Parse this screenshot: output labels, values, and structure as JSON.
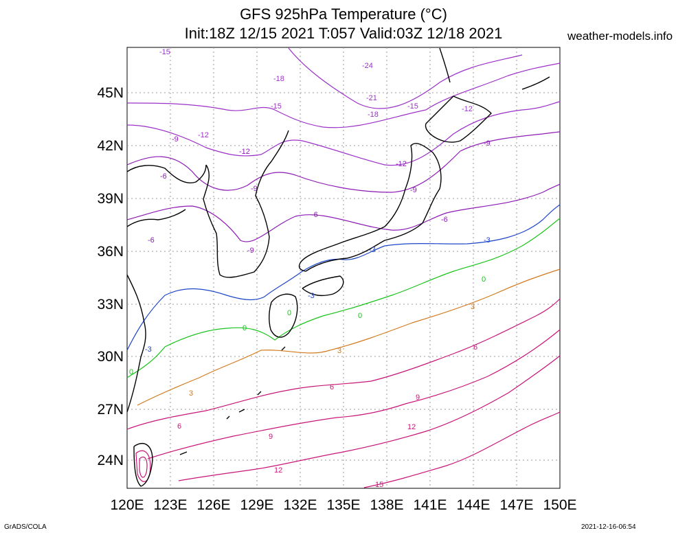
{
  "header": {
    "title_line1": "GFS 925hPa Temperature (°C)",
    "title_line2": "Init:18Z 12/15 2021 T:057 Valid:03Z 12/18 2021",
    "site": "weather-models.info"
  },
  "footer": {
    "left": "GrADS/COLA",
    "right": "2021-12-16-06:54"
  },
  "axes": {
    "lon_labels": [
      "120E",
      "123E",
      "126E",
      "129E",
      "132E",
      "135E",
      "138E",
      "141E",
      "144E",
      "147E",
      "150E"
    ],
    "lat_labels": [
      "45N",
      "42N",
      "39N",
      "36N",
      "33N",
      "30N",
      "27N",
      "24N"
    ]
  },
  "colors": {
    "cold_purple": "#9b30c8",
    "cool_purple": "#8c1ab4",
    "minus3_blue": "#1e46c8",
    "zero_green": "#19c319",
    "plus3_orange": "#d2781e",
    "warm_magenta": "#c81478",
    "coast": "#000000"
  },
  "contour_labels": [
    {
      "text": "-15",
      "color": "#9b30c8"
    },
    {
      "text": "-24",
      "color": "#9b30c8"
    },
    {
      "text": "-18",
      "color": "#9b30c8"
    },
    {
      "text": "-21",
      "color": "#9b30c8"
    },
    {
      "text": "-15",
      "color": "#9b30c8"
    },
    {
      "text": "-18",
      "color": "#9b30c8"
    },
    {
      "text": "-15",
      "color": "#9b30c8"
    },
    {
      "text": "-12",
      "color": "#9b30c8"
    },
    {
      "text": "-12",
      "color": "#9b30c8"
    },
    {
      "text": "-9",
      "color": "#8c1ab4"
    },
    {
      "text": "-12",
      "color": "#8c1ab4"
    },
    {
      "text": "-12",
      "color": "#8c1ab4"
    },
    {
      "text": "-9",
      "color": "#8c1ab4"
    },
    {
      "text": "-9",
      "color": "#8c1ab4"
    },
    {
      "text": "-6",
      "color": "#8c1ab4"
    },
    {
      "text": "-6",
      "color": "#8c1ab4"
    },
    {
      "text": "-6",
      "color": "#8c1ab4"
    },
    {
      "text": "-9",
      "color": "#8c1ab4"
    },
    {
      "text": "-6",
      "color": "#8c1ab4"
    },
    {
      "text": "-9",
      "color": "#8c1ab4"
    },
    {
      "text": "-3",
      "color": "#1e46c8"
    },
    {
      "text": "-3",
      "color": "#1e46c8"
    },
    {
      "text": "-3",
      "color": "#1e46c8"
    },
    {
      "text": "-3",
      "color": "#1e46c8"
    },
    {
      "text": "0",
      "color": "#19c319"
    },
    {
      "text": "0",
      "color": "#19c319"
    },
    {
      "text": "0",
      "color": "#19c319"
    },
    {
      "text": "0",
      "color": "#19c319"
    },
    {
      "text": "0",
      "color": "#19c319"
    },
    {
      "text": "3",
      "color": "#d2781e"
    },
    {
      "text": "3",
      "color": "#d2781e"
    },
    {
      "text": "3",
      "color": "#d2781e"
    },
    {
      "text": "6",
      "color": "#c81478"
    },
    {
      "text": "6",
      "color": "#c81478"
    },
    {
      "text": "6",
      "color": "#c81478"
    },
    {
      "text": "9",
      "color": "#c81478"
    },
    {
      "text": "9",
      "color": "#c81478"
    },
    {
      "text": "12",
      "color": "#c81478"
    },
    {
      "text": "12",
      "color": "#c81478"
    },
    {
      "text": "15",
      "color": "#c81478"
    }
  ]
}
